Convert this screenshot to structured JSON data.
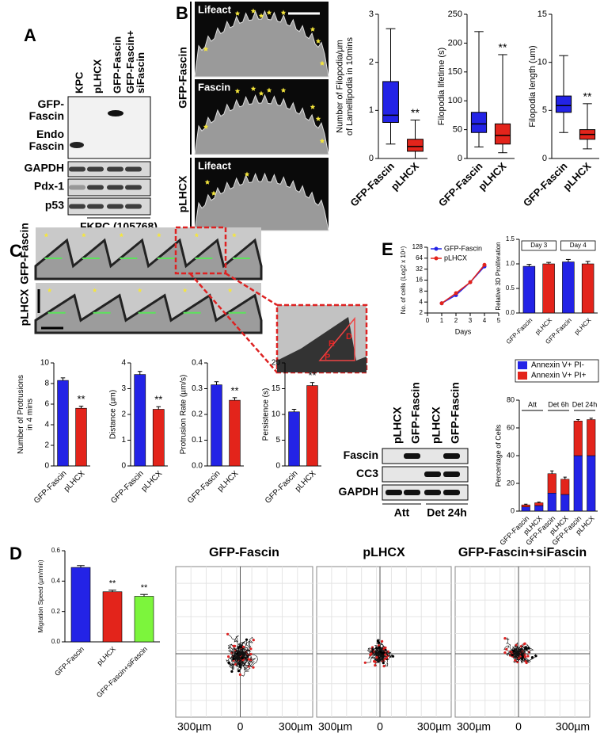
{
  "panel_letters": [
    "A",
    "B",
    "C",
    "D",
    "E"
  ],
  "blot_a": {
    "columns": [
      [
        "KPC"
      ],
      [
        "pLHCX"
      ],
      [
        "GFP-Fascin"
      ],
      [
        "GFP-Fascin+",
        "siFascin"
      ]
    ],
    "rows": [
      [
        "GFP-",
        "Fascin"
      ],
      [
        "Endo",
        "Fascin"
      ],
      [
        "GAPDH"
      ],
      [
        "Pdx-1"
      ],
      [
        "p53"
      ]
    ],
    "footer": "FKPC (105768)"
  },
  "micrographs": {
    "groups": [
      "GFP-Fascin",
      "pLHCX"
    ],
    "labels": [
      "Lifeact",
      "Fascin",
      "Lifeact"
    ]
  },
  "kymographs": {
    "groups": [
      "GFP-Fascin",
      "pLHCX"
    ],
    "zoom_labels": [
      "D",
      "R",
      "P"
    ]
  },
  "blot_e": {
    "columns": [
      "pLHCX",
      "GFP-Fascin",
      "pLHCX",
      "GFP-Fascin"
    ],
    "rows": [
      "Fascin",
      "CC3",
      "GAPDH"
    ],
    "groups": [
      "Att",
      "Det 24h"
    ]
  },
  "tracks": {
    "titles": [
      "GFP-Fascin",
      "pLHCX",
      "GFP-Fascin+siFascin"
    ],
    "axis_labels": [
      "300µm",
      "0",
      "300µm"
    ]
  },
  "chart_data": [
    {
      "type": "box",
      "ylabel": [
        "Number of Filopodia/µm",
        "of Lamellipodia in 10mins"
      ],
      "categories": [
        "GFP-Fascin",
        "pLHCX"
      ],
      "colors": [
        "#2323e6",
        "#e3241b"
      ],
      "boxes": [
        {
          "min": 0.3,
          "q1": 0.75,
          "median": 0.9,
          "q3": 1.6,
          "max": 2.7
        },
        {
          "min": 0,
          "q1": 0.15,
          "median": 0.25,
          "q3": 0.4,
          "max": 0.8
        }
      ],
      "annotations": [
        null,
        "**"
      ],
      "ylim": [
        0,
        3
      ],
      "yticks": [
        0,
        1,
        2,
        3
      ]
    },
    {
      "type": "box",
      "ylabel": [
        "Filopodia lifetime (s)"
      ],
      "categories": [
        "GFP-Fascin",
        "pLHCX"
      ],
      "colors": [
        "#2323e6",
        "#e3241b"
      ],
      "boxes": [
        {
          "min": 20,
          "q1": 45,
          "median": 60,
          "q3": 80,
          "max": 220
        },
        {
          "min": 10,
          "q1": 25,
          "median": 40,
          "q3": 60,
          "max": 180
        }
      ],
      "annotations": [
        null,
        "**"
      ],
      "ylim": [
        0,
        250
      ],
      "yticks": [
        0,
        50,
        100,
        150,
        200,
        250
      ]
    },
    {
      "type": "box",
      "ylabel": [
        "Filopodia length (um)"
      ],
      "categories": [
        "GFP-Fascin",
        "pLHCX"
      ],
      "colors": [
        "#2323e6",
        "#e3241b"
      ],
      "boxes": [
        {
          "min": 2.7,
          "q1": 4.8,
          "median": 5.5,
          "q3": 6.5,
          "max": 10.7
        },
        {
          "min": 1.0,
          "q1": 2.0,
          "median": 2.5,
          "q3": 3.0,
          "max": 5.7
        }
      ],
      "annotations": [
        null,
        "**"
      ],
      "ylim": [
        0,
        15
      ],
      "yticks": [
        0,
        5,
        10,
        15
      ]
    },
    {
      "type": "bar",
      "ylabel": [
        "Number of Protrusions",
        "in 4 mins"
      ],
      "categories": [
        "GFP-Fascin",
        "pLHCX"
      ],
      "colors": [
        "#2323e6",
        "#e3241b"
      ],
      "values": [
        8.3,
        5.6
      ],
      "errors": [
        0.25,
        0.2
      ],
      "annotations": [
        null,
        "**"
      ],
      "ylim": [
        0,
        10
      ],
      "yticks": [
        0,
        2,
        4,
        6,
        8,
        10
      ]
    },
    {
      "type": "bar",
      "ylabel": [
        "Distance (µm)"
      ],
      "categories": [
        "GFP-Fascin",
        "pLHCX"
      ],
      "colors": [
        "#2323e6",
        "#e3241b"
      ],
      "values": [
        3.55,
        2.2
      ],
      "errors": [
        0.12,
        0.1
      ],
      "annotations": [
        null,
        "**"
      ],
      "ylim": [
        0,
        4
      ],
      "yticks": [
        0,
        1,
        2,
        3,
        4
      ]
    },
    {
      "type": "bar",
      "ylabel": [
        "Protrusion Rate (µm/s)"
      ],
      "categories": [
        "GFP-Fascin",
        "pLHCX"
      ],
      "colors": [
        "#2323e6",
        "#e3241b"
      ],
      "values": [
        0.315,
        0.255
      ],
      "errors": [
        0.012,
        0.01
      ],
      "annotations": [
        null,
        "**"
      ],
      "ylim": [
        0,
        0.4
      ],
      "yticks": [
        {
          "value": 0,
          "label": "0.0"
        },
        0.1,
        0.2,
        0.3,
        0.4
      ]
    },
    {
      "type": "bar",
      "ylabel": [
        "Persistence (s)"
      ],
      "categories": [
        "GFP-Fascin",
        "pLHCX"
      ],
      "colors": [
        "#2323e6",
        "#e3241b"
      ],
      "values": [
        10.5,
        15.6
      ],
      "errors": [
        0.5,
        0.6
      ],
      "annotations": [
        null,
        "**"
      ],
      "ylim": [
        0,
        20
      ],
      "yticks": [
        0,
        5,
        10,
        15,
        20
      ]
    },
    {
      "type": "line",
      "ylabel": [
        "No. of cells (Log2 x 10⁴)"
      ],
      "xlabel": "Days",
      "x": [
        1,
        2,
        3,
        4
      ],
      "xlim": [
        0,
        5
      ],
      "xticks": [
        0,
        1,
        2,
        3,
        4,
        5
      ],
      "log_base": 2,
      "ylim": [
        2,
        128
      ],
      "yticks": [
        2,
        4,
        8,
        16,
        32,
        64,
        128
      ],
      "legend": "upper left",
      "series": [
        {
          "name": "GFP-Fascin",
          "color": "#2323e6",
          "values": [
            3.7,
            6.2,
            14,
            38
          ]
        },
        {
          "name": "pLHCX",
          "color": "#e3241b",
          "values": [
            3.7,
            7,
            14,
            42
          ]
        }
      ]
    },
    {
      "type": "bar",
      "ylabel": [
        "Relative 3D Proliferation"
      ],
      "categories": [
        "GFP-Fascin",
        "pLHCX",
        "GFP-Fascin",
        "pLHCX"
      ],
      "groups": [
        "Day 3",
        "Day 4"
      ],
      "colors": [
        "#2323e6",
        "#e3241b",
        "#2323e6",
        "#e3241b"
      ],
      "values": [
        0.95,
        1.0,
        1.04,
        1.0
      ],
      "errors": [
        0.04,
        0.03,
        0.05,
        0.05
      ],
      "ylim": [
        0,
        1.5
      ],
      "yticks": [
        {
          "value": 0,
          "label": "0.0"
        },
        0.5,
        {
          "value": 1,
          "label": "1.0"
        },
        1.5
      ]
    },
    {
      "type": "stacked_bar",
      "ylabel": [
        "Percentage of Cells"
      ],
      "categories": [
        "GFP-Fascin",
        "pLHCX",
        "GFP-Fascin",
        "pLHCX",
        "GFP-Fascin",
        "pLHCX"
      ],
      "groups": [
        "Att",
        "Det 6h",
        "Det 24h"
      ],
      "legend": "upper right",
      "ylim": [
        0,
        80
      ],
      "yticks": [
        0,
        20,
        40,
        60,
        80
      ],
      "series": [
        {
          "name": "Annexin V+ PI-",
          "color": "#2323e6",
          "values": [
            3,
            4,
            13,
            12,
            40,
            40
          ],
          "errors": [
            0.5,
            0.5,
            2,
            1.5,
            5,
            8
          ]
        },
        {
          "name": "Annexin V+ PI+",
          "color": "#e3241b",
          "values": [
            1.5,
            2,
            14,
            11,
            25,
            26
          ],
          "errors": [
            0.5,
            0.5,
            2,
            1.5,
            1,
            1
          ]
        }
      ]
    },
    {
      "type": "bar",
      "ylabel": [
        "Migration Speed (µm/min)"
      ],
      "categories": [
        "GFP-Fascin",
        "pLHCX",
        "GFP-Fascin+siFascin"
      ],
      "colors": [
        "#2323e6",
        "#e3241b",
        "#7cf53c"
      ],
      "values": [
        0.49,
        0.33,
        0.3
      ],
      "errors": [
        0.012,
        0.01,
        0.012
      ],
      "annotations": [
        null,
        "**",
        "**"
      ],
      "ylim": [
        0,
        0.6
      ],
      "yticks": [
        {
          "value": 0,
          "label": "0.0"
        },
        0.2,
        0.4,
        0.6
      ]
    }
  ]
}
